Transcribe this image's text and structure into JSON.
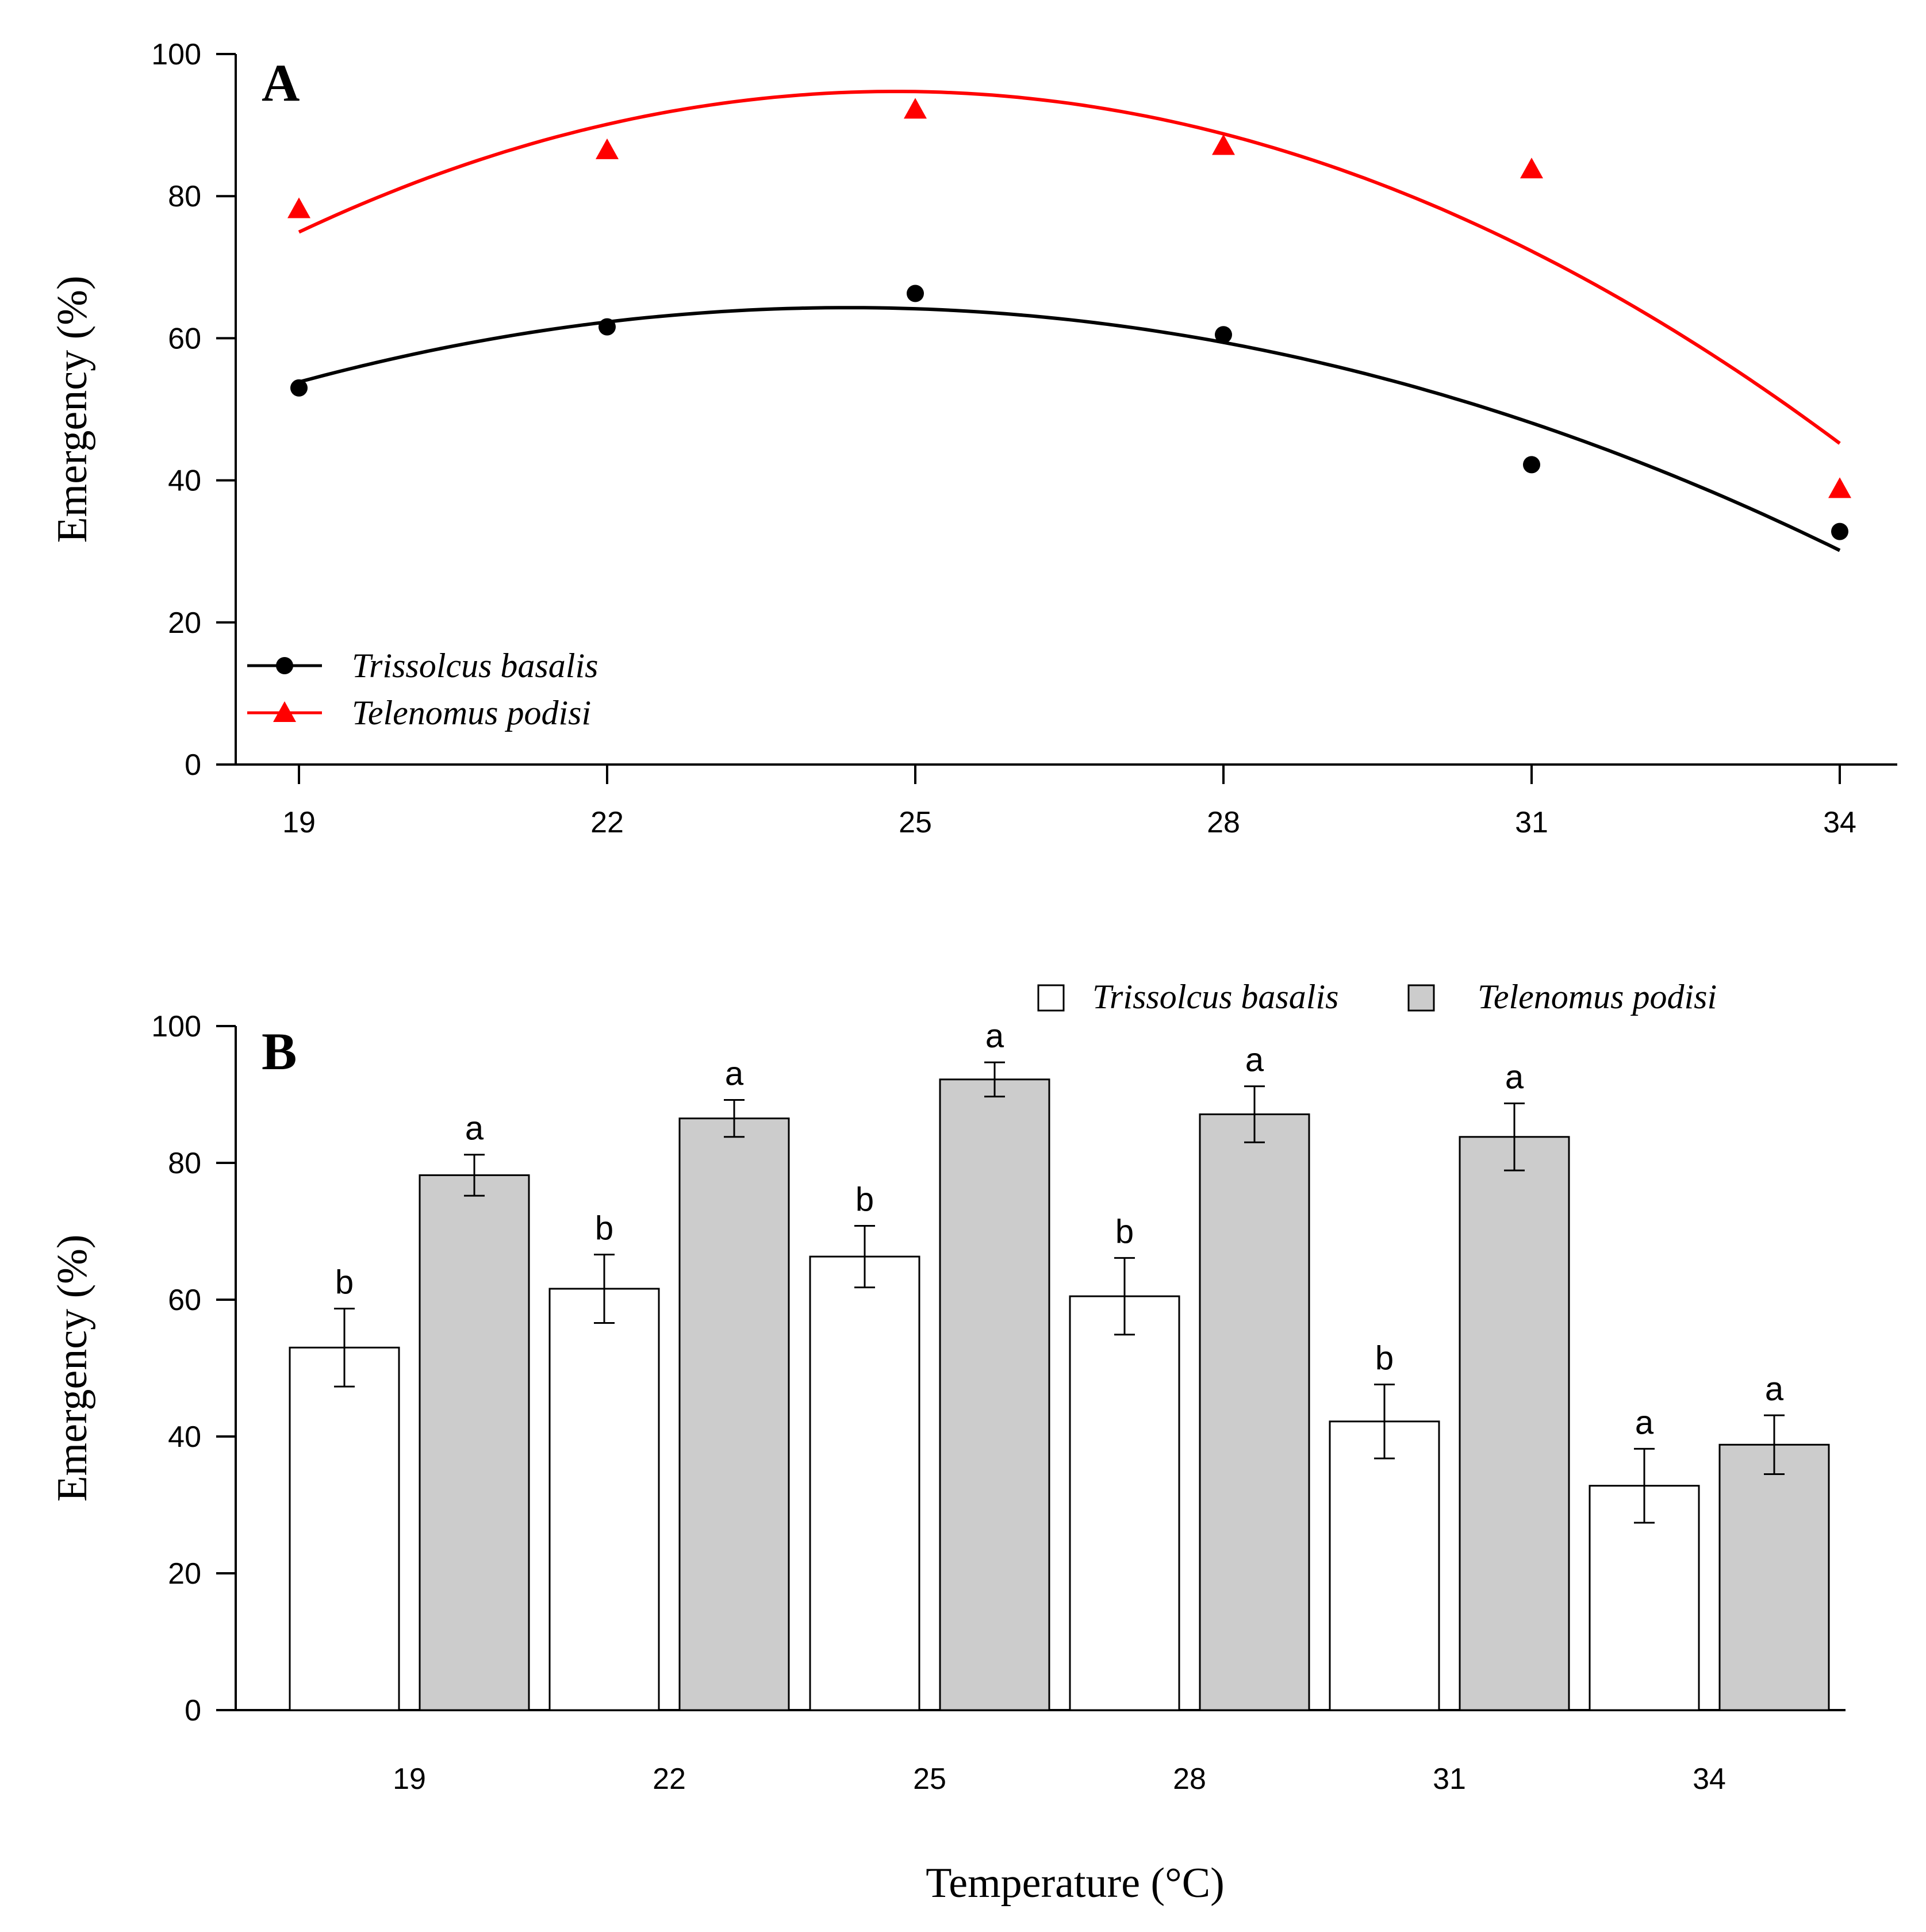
{
  "colors": {
    "trissolcus_line": "#000000",
    "telenomus_line": "#ff0000",
    "bar_trissolcus": "#ffffff",
    "bar_telenomus": "#cccccc"
  },
  "xlabel": "Temperature (°C)",
  "chart_data": [
    {
      "type": "scatter",
      "panel_label": "A",
      "title": "",
      "xlabel": "",
      "ylabel": "Emergency (%)",
      "x": [
        19,
        22,
        25,
        28,
        31,
        34
      ],
      "xticks": [
        "19",
        "22",
        "25",
        "28",
        "31",
        "34"
      ],
      "yticks": [
        "0",
        "20",
        "40",
        "60",
        "80",
        "100"
      ],
      "ylim": [
        0,
        100
      ],
      "xlim": [
        18,
        35
      ],
      "legend_position": "bottom-left",
      "series": [
        {
          "name": "Trissolcus basalis",
          "marker": "circle",
          "color": "#000000",
          "values": [
            53,
            61.6,
            66.3,
            60.5,
            42.2,
            32.8
          ],
          "fit_curve": [
            54,
            62,
            64,
            60,
            47.7,
            30.2
          ]
        },
        {
          "name": "Telenomus podisi",
          "marker": "triangle",
          "color": "#ff0000",
          "values": [
            78.2,
            86.5,
            92.2,
            87.1,
            83.8,
            38.8
          ],
          "fit_curve": [
            75,
            89.9,
            95,
            88.6,
            72.3,
            45.2
          ]
        }
      ]
    },
    {
      "type": "bar",
      "panel_label": "B",
      "title": "",
      "xlabel": "Temperature (°C)",
      "ylabel": "Emergency (%)",
      "categories": [
        "19",
        "22",
        "25",
        "28",
        "31",
        "34"
      ],
      "yticks": [
        "0",
        "20",
        "40",
        "60",
        "80",
        "100"
      ],
      "ylim": [
        0,
        100
      ],
      "legend_position": "top-right",
      "series": [
        {
          "name": "Trissolcus basalis",
          "fill": "#ffffff",
          "values": [
            53,
            61.6,
            66.3,
            60.5,
            42.2,
            32.8
          ],
          "errors": [
            5.7,
            5,
            4.5,
            5.6,
            5.4,
            5.4
          ],
          "letters": [
            "b",
            "b",
            "b",
            "b",
            "b",
            "a"
          ]
        },
        {
          "name": "Telenomus podisi",
          "fill": "#cccccc",
          "values": [
            78.2,
            86.5,
            92.2,
            87.1,
            83.8,
            38.8
          ],
          "errors": [
            3,
            2.7,
            2.5,
            4.1,
            4.9,
            4.3
          ],
          "letters": [
            "a",
            "a",
            "a",
            "a",
            "a",
            "a"
          ]
        }
      ]
    }
  ]
}
